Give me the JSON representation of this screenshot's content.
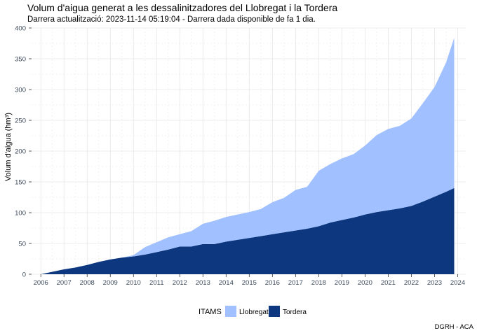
{
  "chart_data": {
    "type": "area",
    "stacked": true,
    "title": "Volum d'aigua generat a les dessalinitzadores del Llobregat i la Tordera",
    "subtitle": "Darrera actualització: 2023-11-14 05:19:04 - Darrera dada disponible de fa 1 dia.",
    "xlabel": "",
    "ylabel": "Volum d'aigua (hm³)",
    "xlim": [
      2005.6,
      2024.35
    ],
    "ylim": [
      0,
      400
    ],
    "x_ticks": [
      2006,
      2007,
      2008,
      2009,
      2010,
      2011,
      2012,
      2013,
      2014,
      2015,
      2016,
      2017,
      2018,
      2019,
      2020,
      2021,
      2022,
      2023,
      2024
    ],
    "y_ticks": [
      0,
      50,
      100,
      150,
      200,
      250,
      300,
      350,
      400
    ],
    "grid": true,
    "legend": {
      "title": "ITAMS",
      "position": "bottom"
    },
    "x": [
      2006.0,
      2006.5,
      2007.0,
      2007.5,
      2008.0,
      2008.5,
      2009.0,
      2009.5,
      2010.0,
      2010.5,
      2011.0,
      2011.5,
      2012.0,
      2012.5,
      2013.0,
      2013.5,
      2014.0,
      2014.5,
      2015.0,
      2015.5,
      2016.0,
      2016.5,
      2017.0,
      2017.5,
      2018.0,
      2018.5,
      2019.0,
      2019.5,
      2020.0,
      2020.5,
      2021.0,
      2021.5,
      2022.0,
      2022.5,
      2023.0,
      2023.5,
      2023.85
    ],
    "series": [
      {
        "name": "Tordera",
        "color": "#0d3880",
        "values": [
          0,
          4,
          8,
          11,
          15,
          20,
          24,
          27,
          29,
          32,
          36,
          40,
          45,
          45,
          49,
          49,
          53,
          56,
          59,
          62,
          65,
          68,
          71,
          74,
          78,
          84,
          88,
          92,
          97,
          101,
          104,
          107,
          111,
          118,
          126,
          134,
          140
        ]
      },
      {
        "name": "Llobregat",
        "color": "#a0c0ff",
        "values": [
          0,
          0,
          0,
          0,
          0,
          0,
          0,
          0,
          2,
          12,
          16,
          20,
          20,
          25,
          33,
          38,
          40,
          41,
          42,
          44,
          52,
          56,
          66,
          68,
          90,
          95,
          100,
          103,
          112,
          125,
          132,
          134,
          142,
          160,
          178,
          210,
          244
        ]
      }
    ],
    "caption": "DGRH - ACA"
  }
}
